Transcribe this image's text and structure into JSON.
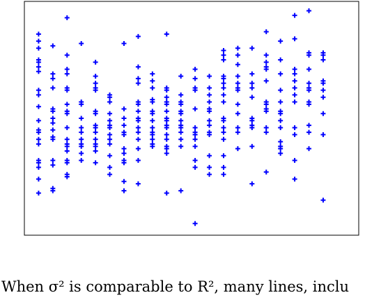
{
  "chart_data": {
    "type": "scatter",
    "marker": "plus",
    "color": "#0000ff",
    "xlim": [
      0,
      23.5
    ],
    "ylim": [
      0,
      10
    ],
    "x": [
      1,
      1,
      1,
      1,
      1,
      1,
      1,
      1,
      1,
      1,
      1,
      1,
      1,
      1,
      1,
      1,
      1,
      1,
      1,
      1,
      2,
      2,
      2,
      2,
      2,
      2,
      2,
      2,
      2,
      2,
      2,
      2,
      2,
      2,
      2,
      3,
      3,
      3,
      3,
      3,
      3,
      3,
      3,
      3,
      3,
      3,
      3,
      3,
      3,
      3,
      3,
      3,
      3,
      4,
      4,
      4,
      4,
      4,
      4,
      4,
      4,
      4,
      4,
      4,
      5,
      5,
      5,
      5,
      5,
      5,
      5,
      5,
      5,
      5,
      5,
      5,
      5,
      5,
      5,
      6,
      6,
      6,
      6,
      6,
      6,
      6,
      6,
      6,
      6,
      6,
      6,
      6,
      7,
      7,
      7,
      7,
      7,
      7,
      7,
      7,
      7,
      7,
      7,
      7,
      8,
      8,
      8,
      8,
      8,
      8,
      8,
      8,
      8,
      8,
      8,
      8,
      8,
      8,
      8,
      9,
      9,
      9,
      9,
      9,
      9,
      9,
      9,
      9,
      9,
      9,
      9,
      9,
      9,
      10,
      10,
      10,
      10,
      10,
      10,
      10,
      10,
      10,
      10,
      10,
      10,
      10,
      10,
      10,
      10,
      10,
      11,
      11,
      11,
      11,
      11,
      11,
      11,
      11,
      11,
      11,
      11,
      11,
      11,
      12,
      12,
      12,
      12,
      12,
      12,
      12,
      12,
      12,
      12,
      12,
      12,
      12,
      13,
      13,
      13,
      13,
      13,
      13,
      13,
      13,
      13,
      13,
      13,
      13,
      13,
      14,
      14,
      14,
      14,
      14,
      14,
      14,
      14,
      14,
      14,
      14,
      14,
      14,
      14,
      14,
      14,
      14,
      15,
      15,
      15,
      15,
      15,
      15,
      15,
      15,
      15,
      15,
      15,
      15,
      16,
      16,
      16,
      16,
      16,
      16,
      16,
      16,
      16,
      16,
      16,
      17,
      17,
      17,
      17,
      17,
      17,
      17,
      17,
      17,
      17,
      17,
      17,
      17,
      18,
      18,
      18,
      18,
      18,
      18,
      18,
      18,
      18,
      18,
      18,
      18,
      18,
      19,
      19,
      19,
      19,
      19,
      19,
      19,
      19,
      19,
      19,
      19,
      19,
      20,
      20,
      20,
      20,
      20,
      20,
      20,
      20,
      20,
      20,
      20,
      20,
      21,
      21,
      21,
      21,
      21,
      21,
      21,
      21,
      21,
      21
    ],
    "values": [
      8.6,
      8.3,
      8.0,
      7.5,
      7.4,
      7.2,
      7.0,
      6.2,
      6.0,
      5.5,
      4.9,
      4.5,
      4.4,
      4.1,
      3.9,
      3.2,
      3.1,
      2.9,
      2.4,
      1.8,
      8.1,
      6.9,
      6.7,
      6.3,
      5.4,
      5.3,
      5.0,
      4.8,
      4.5,
      4.2,
      4.1,
      3.2,
      3.0,
      2.0,
      1.9,
      9.3,
      7.7,
      7.1,
      6.9,
      6.3,
      6.2,
      5.6,
      5.3,
      5.2,
      4.6,
      4.1,
      3.9,
      3.8,
      3.6,
      3.2,
      3.1,
      2.6,
      2.5,
      8.2,
      5.7,
      5.6,
      5.0,
      4.6,
      4.4,
      4.1,
      3.9,
      3.8,
      3.5,
      3.2,
      7.4,
      6.8,
      6.5,
      6.3,
      6.2,
      5.3,
      5.2,
      4.7,
      4.6,
      4.4,
      4.1,
      3.9,
      3.8,
      3.6,
      3.1,
      6.0,
      5.9,
      5.7,
      5.2,
      4.9,
      4.7,
      4.6,
      4.3,
      4.1,
      3.9,
      3.4,
      2.9,
      2.6,
      8.2,
      5.4,
      5.0,
      4.7,
      4.4,
      4.3,
      3.7,
      3.5,
      3.2,
      3.1,
      2.3,
      1.9,
      8.5,
      7.2,
      6.7,
      6.5,
      5.7,
      5.6,
      5.3,
      5.0,
      4.9,
      4.6,
      4.4,
      4.1,
      3.7,
      3.2,
      2.2,
      6.9,
      6.6,
      6.3,
      5.8,
      5.7,
      5.3,
      5.2,
      4.9,
      4.6,
      4.4,
      4.3,
      4.1,
      3.9,
      3.8,
      8.6,
      6.3,
      6.2,
      5.9,
      5.7,
      5.6,
      5.3,
      5.0,
      4.9,
      4.7,
      4.6,
      4.3,
      4.1,
      3.8,
      3.7,
      3.5,
      1.8,
      6.8,
      6.0,
      5.7,
      5.6,
      5.3,
      5.2,
      4.9,
      4.7,
      4.6,
      4.4,
      4.1,
      3.8,
      1.9,
      7.1,
      6.7,
      6.3,
      6.2,
      5.4,
      4.6,
      4.4,
      4.3,
      4.1,
      3.8,
      3.2,
      2.9,
      0.5,
      6.8,
      6.3,
      6.0,
      5.7,
      5.4,
      5.3,
      4.9,
      4.7,
      4.4,
      4.3,
      3.4,
      2.9,
      2.6,
      7.9,
      7.7,
      7.5,
      6.8,
      6.7,
      6.5,
      6.3,
      6.0,
      5.7,
      5.0,
      4.9,
      4.6,
      4.4,
      4.1,
      3.4,
      2.9,
      2.6,
      8.0,
      7.7,
      7.3,
      6.8,
      6.5,
      6.3,
      6.2,
      5.6,
      5.2,
      4.6,
      4.4,
      3.7,
      8.0,
      6.9,
      6.5,
      6.3,
      5.9,
      5.0,
      4.9,
      4.7,
      4.6,
      3.8,
      2.2,
      8.7,
      7.7,
      7.4,
      7.2,
      7.1,
      6.6,
      5.7,
      5.6,
      5.4,
      5.3,
      4.6,
      4.4,
      2.7,
      8.3,
      7.5,
      6.9,
      6.2,
      5.7,
      5.3,
      5.2,
      4.9,
      4.6,
      4.0,
      3.8,
      3.7,
      3.5,
      9.4,
      8.4,
      7.1,
      6.9,
      6.6,
      6.3,
      6.0,
      5.7,
      4.6,
      4.3,
      3.2,
      2.4,
      9.6,
      7.8,
      7.7,
      7.1,
      6.5,
      6.3,
      6.2,
      5.7,
      5.6,
      4.7,
      4.4,
      3.7,
      7.8,
      7.7,
      7.5,
      6.6,
      6.5,
      6.2,
      5.9,
      5.2,
      4.3,
      1.5
    ]
  },
  "caption": "When σ² is comparable to R², many lines, inclu"
}
